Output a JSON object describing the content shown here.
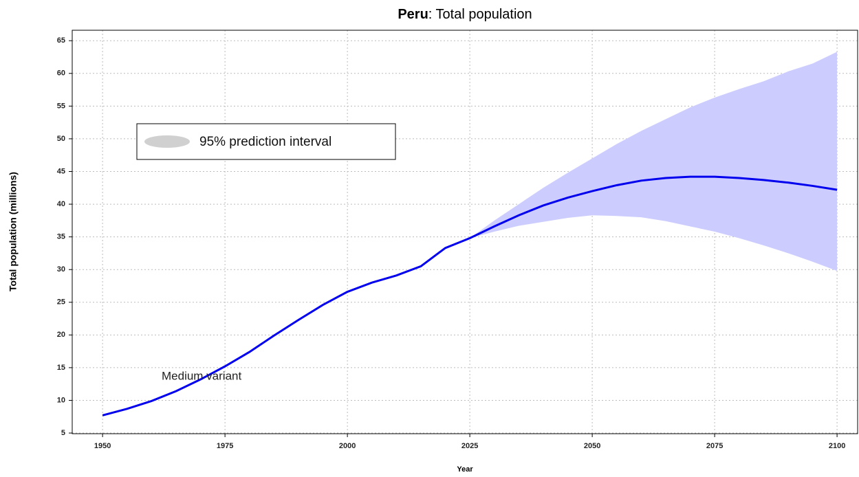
{
  "chart_data": {
    "type": "line",
    "title_bold": "Peru",
    "title_rest": ": Total population",
    "x_label": "Year",
    "y_label": "Total population (millions)",
    "annotation": "Medium variant",
    "x": [
      1950,
      1955,
      1960,
      1965,
      1970,
      1975,
      1980,
      1985,
      1990,
      1995,
      2000,
      2005,
      2010,
      2015,
      2020,
      2025,
      2030,
      2035,
      2040,
      2045,
      2050,
      2055,
      2060,
      2065,
      2070,
      2075,
      2080,
      2085,
      2090,
      2095,
      2100
    ],
    "series": [
      {
        "name": "Medium variant",
        "color": "#0000ee",
        "values": [
          7.7,
          8.7,
          9.9,
          11.4,
          13.2,
          15.2,
          17.4,
          19.9,
          22.3,
          24.6,
          26.6,
          28.0,
          29.1,
          30.5,
          33.3,
          34.8,
          36.6,
          38.3,
          39.8,
          41.0,
          42.0,
          42.9,
          43.6,
          44.0,
          44.2,
          44.2,
          44.0,
          43.7,
          43.3,
          42.8,
          42.2
        ]
      }
    ],
    "band": {
      "name": "95% prediction interval",
      "color": "#ccccff",
      "legend_color": "#d0d0d0",
      "lower": [
        null,
        null,
        null,
        null,
        null,
        null,
        null,
        null,
        null,
        null,
        null,
        null,
        null,
        null,
        null,
        34.8,
        35.8,
        36.7,
        37.3,
        37.9,
        38.3,
        38.2,
        38.0,
        37.4,
        36.6,
        35.8,
        34.8,
        33.7,
        32.5,
        31.2,
        29.8
      ],
      "upper": [
        null,
        null,
        null,
        null,
        null,
        null,
        null,
        null,
        null,
        null,
        null,
        null,
        null,
        null,
        null,
        34.8,
        37.5,
        40.0,
        42.5,
        44.8,
        47.0,
        49.2,
        51.2,
        53.0,
        54.8,
        56.3,
        57.6,
        58.8,
        60.3,
        61.5,
        63.3
      ]
    },
    "xlim": [
      1943.8,
      2104.2
    ],
    "xticks": [
      1950,
      1975,
      2000,
      2025,
      2050,
      2075,
      2100
    ],
    "ylim": [
      4.9,
      66.6
    ],
    "yticks": [
      5,
      10,
      15,
      20,
      25,
      30,
      35,
      40,
      45,
      50,
      55,
      60,
      65
    ],
    "grid": true
  }
}
